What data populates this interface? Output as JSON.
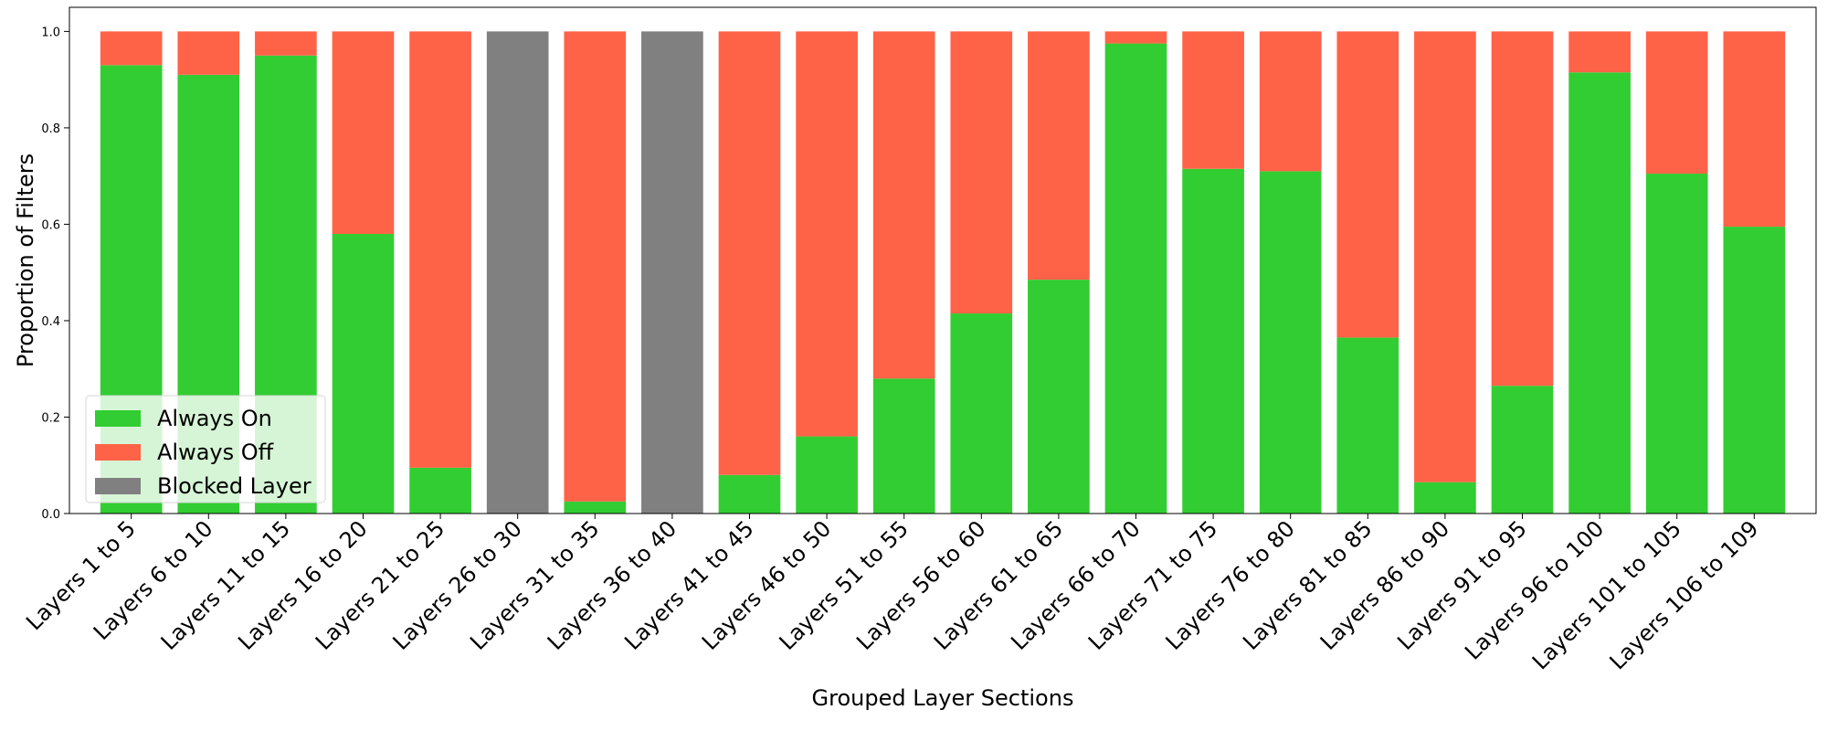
{
  "chart_data": {
    "type": "bar",
    "stacked": true,
    "title": "",
    "xlabel": "Grouped Layer Sections",
    "ylabel": "Proportion of Filters",
    "ylim": [
      0,
      1.05
    ],
    "yticks": [
      "0.0",
      "0.2",
      "0.4",
      "0.6",
      "0.8",
      "1.0"
    ],
    "grid": false,
    "legend_position": "lower-left",
    "categories": [
      "Layers 1 to 5",
      "Layers 6 to 10",
      "Layers 11 to 15",
      "Layers 16 to 20",
      "Layers 21 to 25",
      "Layers 26 to 30",
      "Layers 31 to 35",
      "Layers 36 to 40",
      "Layers 41 to 45",
      "Layers 46 to 50",
      "Layers 51 to 55",
      "Layers 56 to 60",
      "Layers 61 to 65",
      "Layers 66 to 70",
      "Layers 71 to 75",
      "Layers 76 to 80",
      "Layers 81 to 85",
      "Layers 86 to 90",
      "Layers 91 to 95",
      "Layers 96 to 100",
      "Layers 101 to 105",
      "Layers 106 to 109"
    ],
    "series": [
      {
        "name": "Always On",
        "color": "#32cd32",
        "values": [
          0.93,
          0.91,
          0.95,
          0.58,
          0.095,
          0,
          0.025,
          0,
          0.08,
          0.16,
          0.28,
          0.415,
          0.485,
          0.975,
          0.715,
          0.71,
          0.365,
          0.065,
          0.265,
          0.915,
          0.705,
          0.595
        ]
      },
      {
        "name": "Always Off",
        "color": "#ff6347",
        "values": [
          0.07,
          0.09,
          0.05,
          0.42,
          0.905,
          0,
          0.975,
          0,
          0.92,
          0.84,
          0.72,
          0.585,
          0.515,
          0.025,
          0.285,
          0.29,
          0.635,
          0.935,
          0.735,
          0.085,
          0.295,
          0.405
        ]
      },
      {
        "name": "Blocked Layer",
        "color": "#808080",
        "values": [
          0,
          0,
          0,
          0,
          0,
          1,
          0,
          1,
          0,
          0,
          0,
          0,
          0,
          0,
          0,
          0,
          0,
          0,
          0,
          0,
          0,
          0
        ]
      }
    ]
  }
}
